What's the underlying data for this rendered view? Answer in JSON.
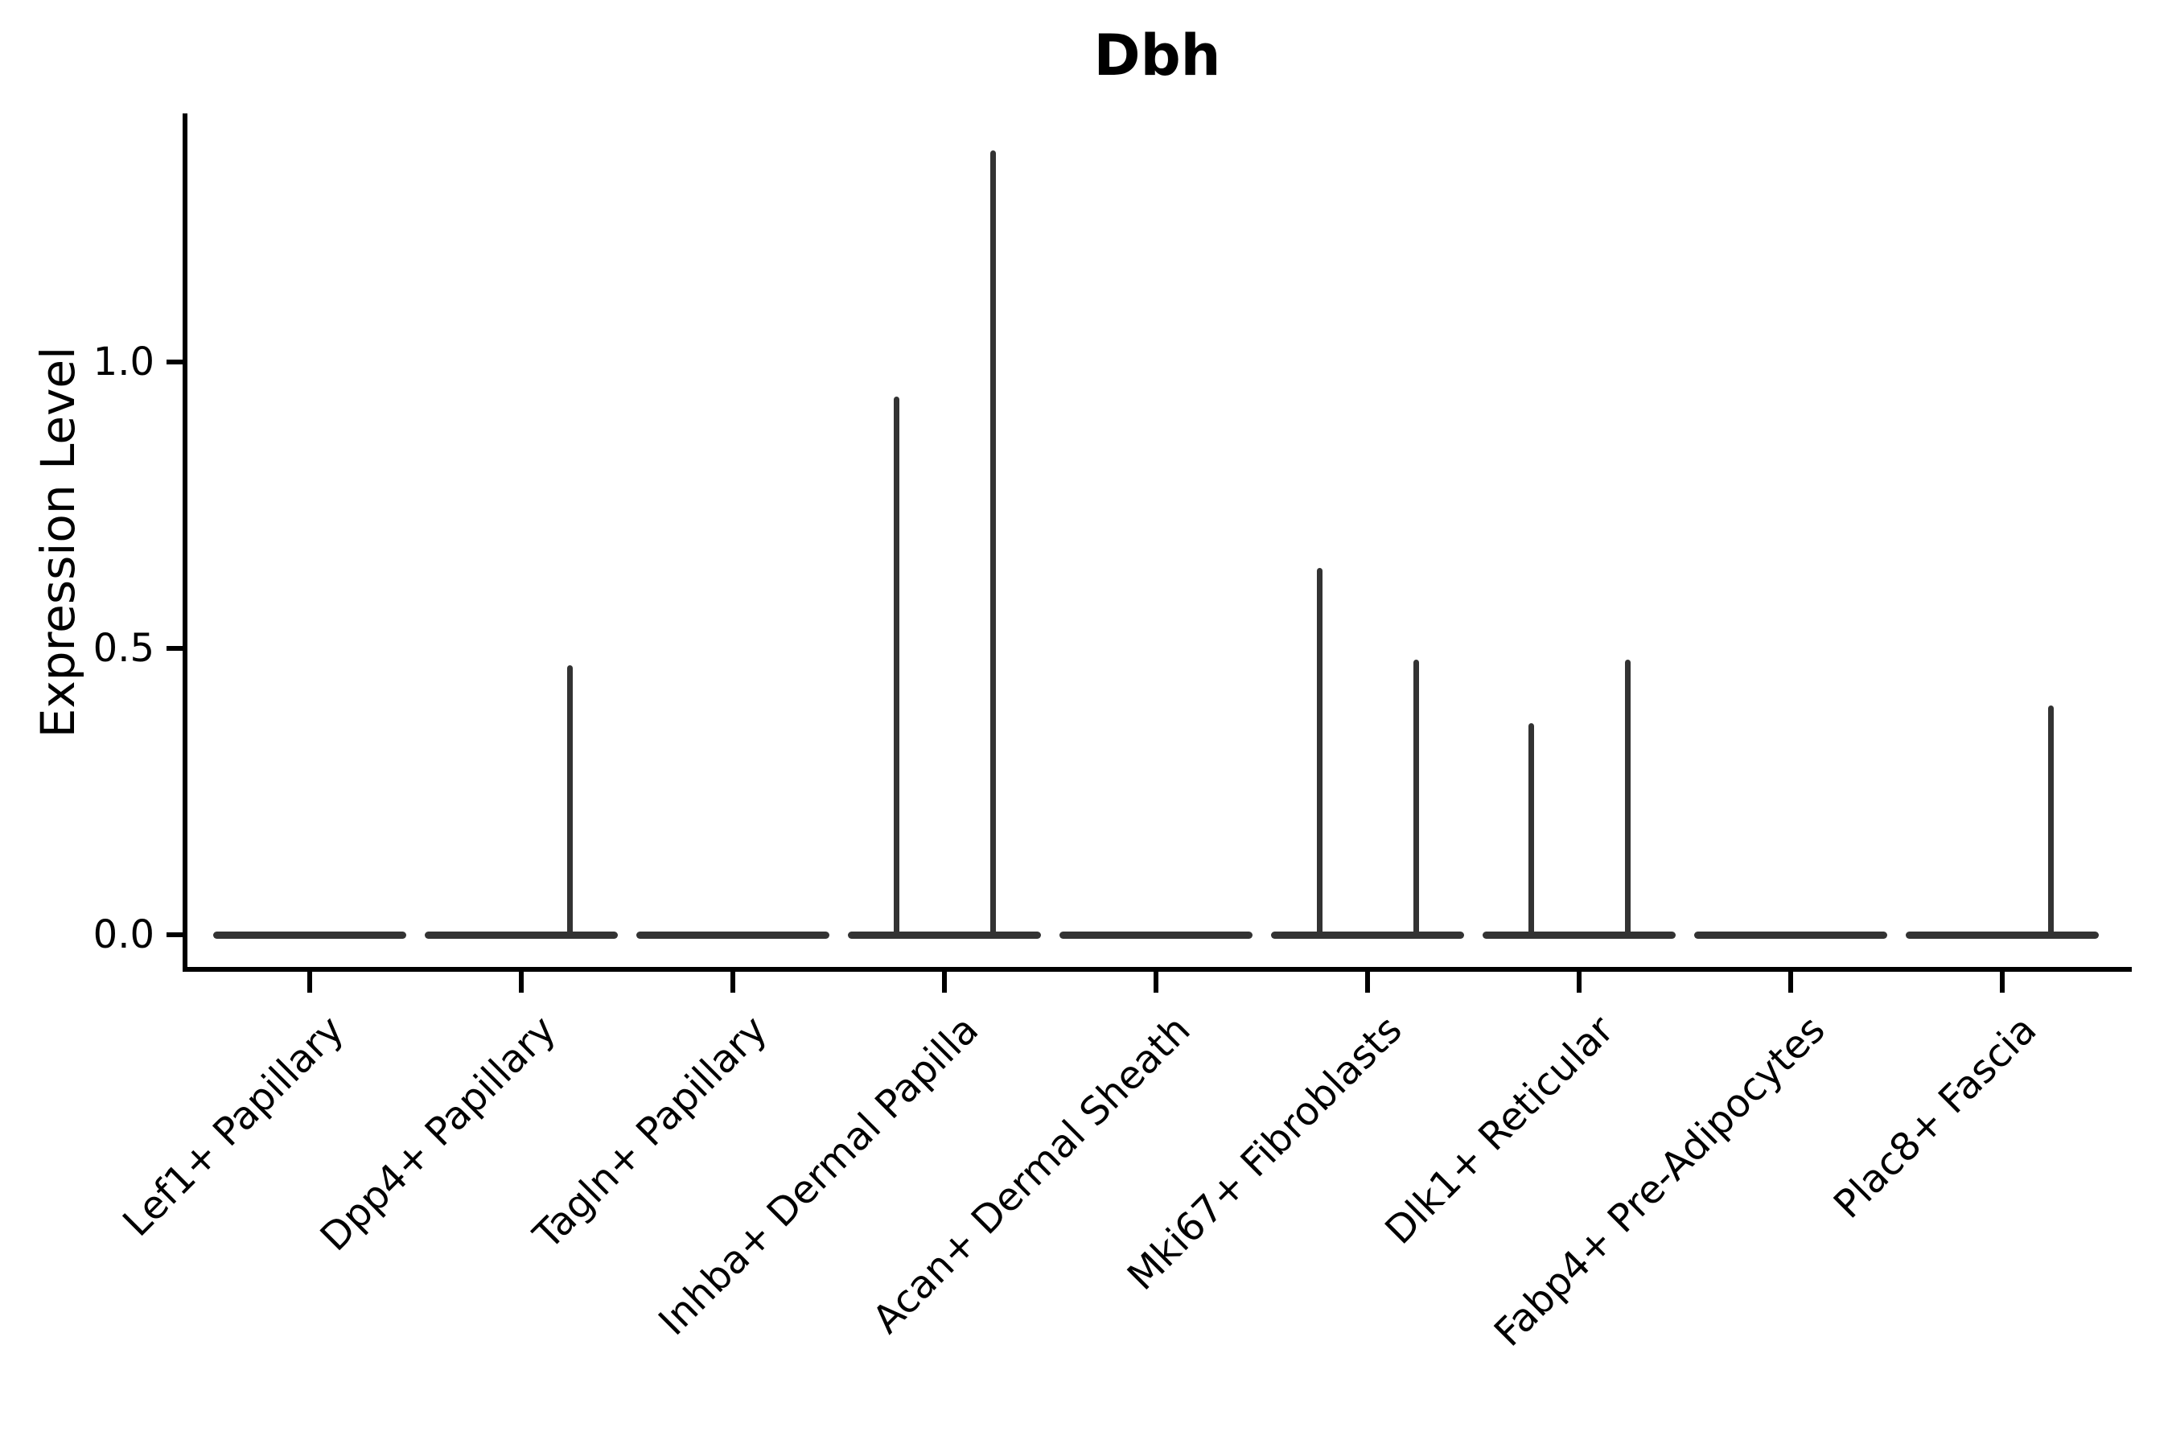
{
  "chart_data": {
    "type": "violin",
    "title": "Dbh",
    "ylabel": "Expression Level",
    "xlabel": "",
    "categories": [
      "Lef1+ Papillary",
      "Dpp4+ Papillary",
      "Tagln+ Papillary",
      "Inhba+ Dermal Papilla",
      "Acan+ Dermal Sheath",
      "Mki67+ Fibroblasts",
      "Dlk1+ Reticular",
      "Fabp4+ Pre-Adipocytes",
      "Plac8+ Fascia"
    ],
    "yticks": [
      0.0,
      0.5,
      1.0
    ],
    "ytick_labels": [
      "0.0",
      "0.5",
      "1.0"
    ],
    "ylim": [
      -0.065,
      1.435
    ],
    "grid": false,
    "legend_position": "none",
    "violins": [
      {
        "label": "Lef1+ Papillary",
        "base_value": 0.0,
        "spike_left": null,
        "spike_right": null
      },
      {
        "label": "Dpp4+ Papillary",
        "base_value": 0.0,
        "spike_left": null,
        "spike_right": 0.47
      },
      {
        "label": "Tagln+ Papillary",
        "base_value": 0.0,
        "spike_left": null,
        "spike_right": null
      },
      {
        "label": "Inhba+ Dermal Papilla",
        "base_value": 0.0,
        "spike_left": 0.94,
        "spike_right": 1.37
      },
      {
        "label": "Acan+ Dermal Sheath",
        "base_value": 0.0,
        "spike_left": null,
        "spike_right": null
      },
      {
        "label": "Mki67+ Fibroblasts",
        "base_value": 0.0,
        "spike_left": 0.64,
        "spike_right": 0.48
      },
      {
        "label": "Dlk1+ Reticular",
        "base_value": 0.0,
        "spike_left": 0.37,
        "spike_right": 0.48
      },
      {
        "label": "Fabp4+ Pre-Adipocytes",
        "base_value": 0.0,
        "spike_left": null,
        "spike_right": null
      },
      {
        "label": "Plac8+ Fascia",
        "base_value": 0.0,
        "spike_left": null,
        "spike_right": 0.4
      }
    ],
    "colors": {
      "violin_line": "#333333",
      "axis": "#000000",
      "text": "#000000",
      "background": "#ffffff"
    }
  }
}
